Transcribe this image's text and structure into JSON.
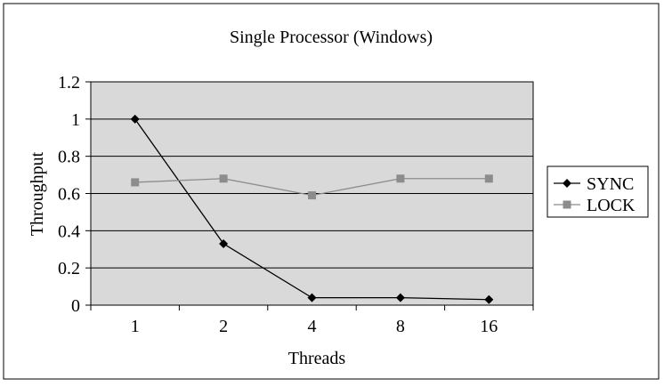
{
  "chart_data": {
    "type": "line",
    "title": "Single Processor (Windows)",
    "xlabel": "Threads",
    "ylabel": "Throughput",
    "categories": [
      "1",
      "2",
      "4",
      "8",
      "16"
    ],
    "ylim": [
      0,
      1.2
    ],
    "yticks": [
      "0",
      "0.2",
      "0.4",
      "0.6",
      "0.8",
      "1",
      "1.2"
    ],
    "grid": true,
    "legend_position": "right",
    "series": [
      {
        "name": "SYNC",
        "values": [
          1.0,
          0.33,
          0.04,
          0.04,
          0.03
        ],
        "color": "#000000",
        "marker": "diamond"
      },
      {
        "name": "LOCK",
        "values": [
          0.66,
          0.68,
          0.59,
          0.68,
          0.68
        ],
        "color": "#8c8c8c",
        "marker": "square"
      }
    ],
    "plot_background": "#d9d9d9"
  }
}
